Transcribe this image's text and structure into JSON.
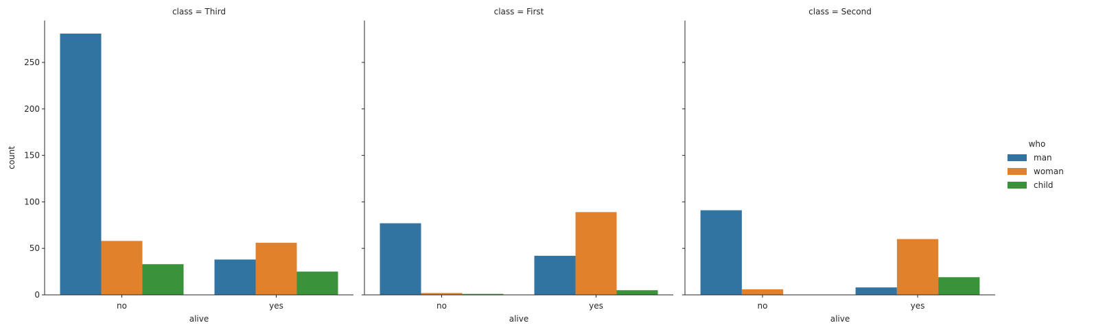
{
  "chart_data": {
    "type": "bar",
    "ylabel": "count",
    "ylim": [
      0,
      295
    ],
    "yticks": [
      0,
      50,
      100,
      150,
      200,
      250
    ],
    "categories": [
      "no",
      "yes"
    ],
    "hue_order": [
      "man",
      "woman",
      "child"
    ],
    "colors": {
      "man": "#3274a1",
      "woman": "#e1812c",
      "child": "#3a923a"
    },
    "legend": {
      "title": "who",
      "placement": "right",
      "entries": [
        "man",
        "woman",
        "child"
      ]
    },
    "panels": [
      {
        "title": "class = Third",
        "xlabel": "alive",
        "series": [
          {
            "name": "man",
            "values": [
              281,
              38
            ]
          },
          {
            "name": "woman",
            "values": [
              58,
              56
            ]
          },
          {
            "name": "child",
            "values": [
              33,
              25
            ]
          }
        ]
      },
      {
        "title": "class = First",
        "xlabel": "alive",
        "series": [
          {
            "name": "man",
            "values": [
              77,
              42
            ]
          },
          {
            "name": "woman",
            "values": [
              2,
              89
            ]
          },
          {
            "name": "child",
            "values": [
              1,
              5
            ]
          }
        ]
      },
      {
        "title": "class = Second",
        "xlabel": "alive",
        "series": [
          {
            "name": "man",
            "values": [
              91,
              8
            ]
          },
          {
            "name": "woman",
            "values": [
              6,
              60
            ]
          },
          {
            "name": "child",
            "values": [
              0,
              19
            ]
          }
        ]
      }
    ]
  }
}
